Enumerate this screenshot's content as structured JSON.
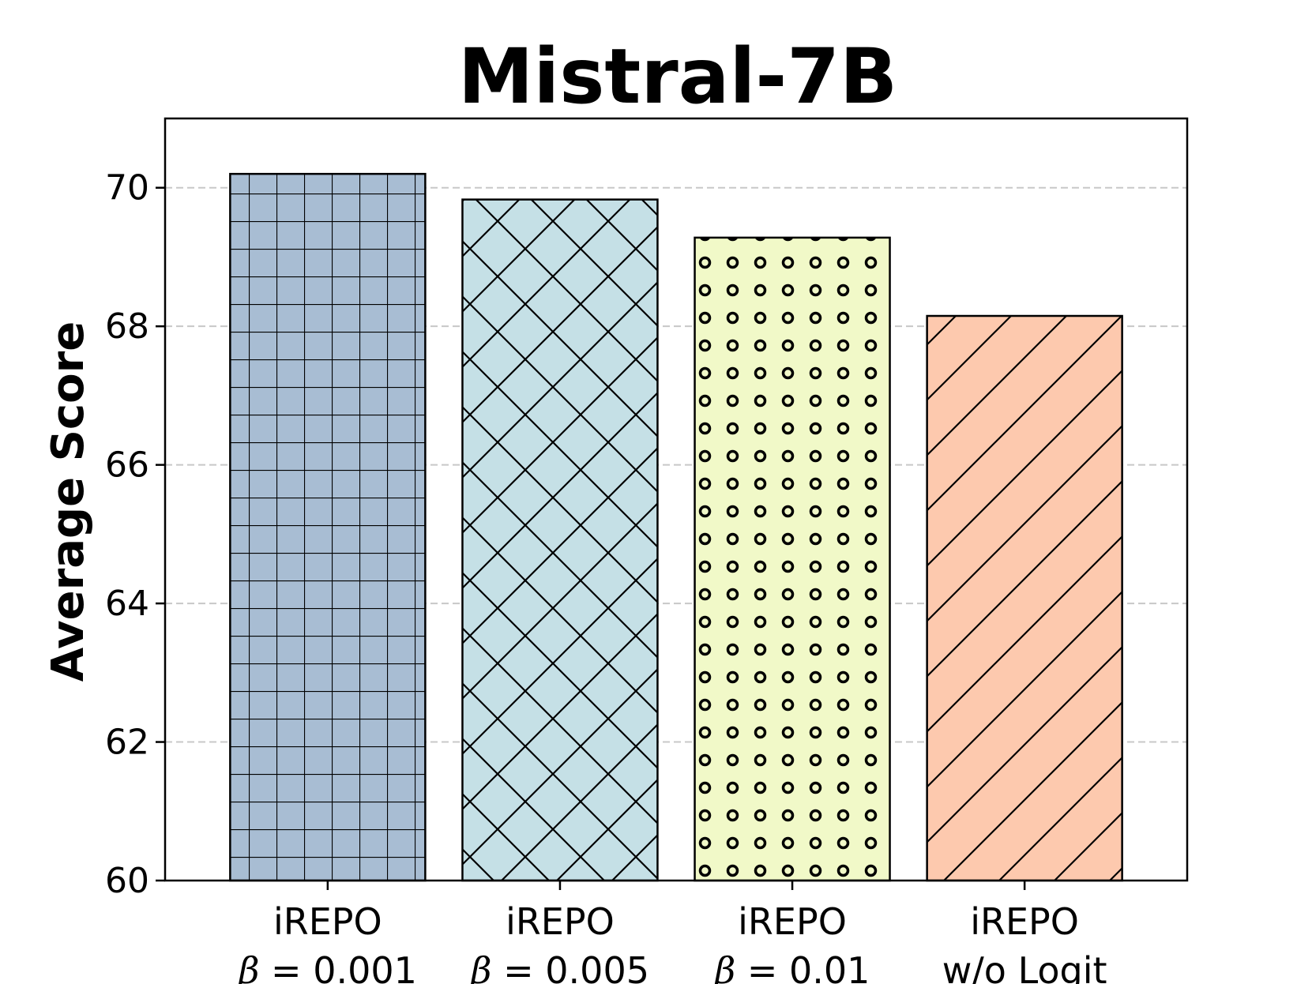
{
  "chart_data": {
    "type": "bar",
    "title": "Mistral-7B",
    "xlabel": "",
    "ylabel": "Average Score",
    "ylim": [
      60,
      71
    ],
    "yticks": [
      60,
      62,
      64,
      66,
      68,
      70
    ],
    "grid": "horizontal dashed",
    "categories": [
      {
        "line1": "iREPO",
        "line2": "β = 0.001"
      },
      {
        "line1": "iREPO",
        "line2": "β = 0.005"
      },
      {
        "line1": "iREPO",
        "line2": "β = 0.01"
      },
      {
        "line1": "iREPO",
        "line2": "w/o Logit"
      }
    ],
    "values": [
      70.2,
      69.83,
      69.28,
      68.15
    ],
    "colors": [
      "#a8bdd3",
      "#c5e0e6",
      "#f1f9c8",
      "#fdc9ae"
    ],
    "hatches": [
      "grid",
      "crosshatch",
      "circles",
      "diagonal"
    ]
  }
}
